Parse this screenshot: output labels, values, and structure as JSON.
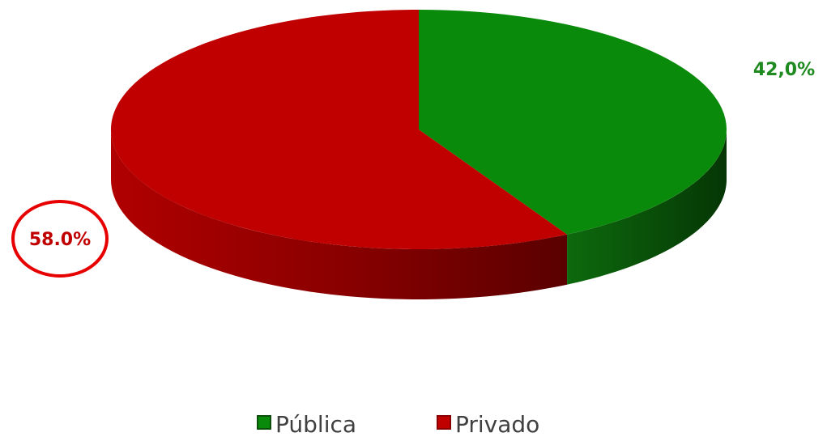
{
  "chart_data": {
    "type": "pie",
    "style": "3d",
    "categories": [
      "Pública",
      "Privado"
    ],
    "values": [
      42.0,
      58.0
    ],
    "data_labels": [
      "42,0%",
      "58.0%"
    ],
    "colors": [
      "#0a8a0a",
      "#c00000"
    ],
    "side_colors": [
      "#0b4f0b",
      "#8a0000"
    ],
    "label_colors": [
      "#1f8a1f",
      "#c00000"
    ],
    "highlighted_label_index": 1,
    "highlight_color": "#e60000",
    "legend_position": "bottom",
    "title": ""
  }
}
